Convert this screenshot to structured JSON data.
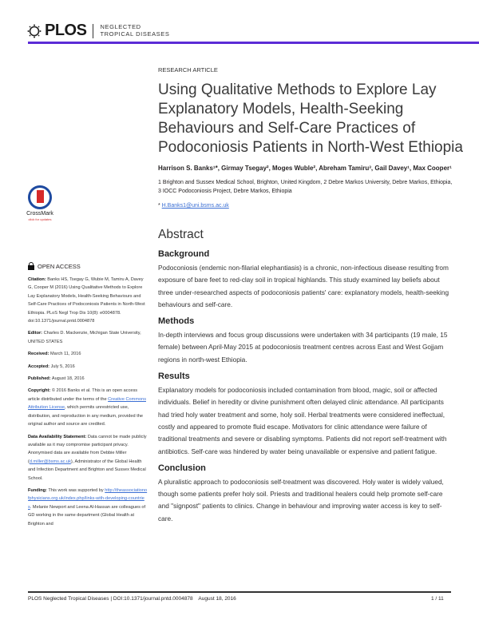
{
  "header": {
    "brand": "PLOS",
    "journal_line1": "NEGLECTED",
    "journal_line2": "TROPICAL DISEASES",
    "accent": "#5b2bd6"
  },
  "article_type": "RESEARCH ARTICLE",
  "title": "Using Qualitative Methods to Explore Lay Explanatory Models, Health-Seeking Behaviours and Self-Care Practices of Podoconiosis Patients in North-West Ethiopia",
  "authors": "Harrison S. Banks¹*, Girmay Tsegay², Moges Wuble², Abreham Tamiru³, Gail Davey¹, Max Cooper¹",
  "affiliations": "1  Brighton and Sussex Medical School, Brighton, United Kingdom, 2  Debre Markos University, Debre Markos, Ethiopia, 3  IOCC Podoconiosis Project, Debre Markos, Ethiopia",
  "email_prefix": "* ",
  "email": "H.Banks1@uni.bsms.ac.uk",
  "crossmark": {
    "name": "CrossMark",
    "sub": "click for updates"
  },
  "open_access": "OPEN ACCESS",
  "sidebar": {
    "citation_label": "Citation:",
    "citation": " Banks HS, Tsegay G, Wubie M, Tamiru A, Davey G, Cooper M (2016) Using Qualitative Methods to Explore Lay Explanatory Models, Health-Seeking Behaviours and Self-Care Practices of Podoconiosis Patients in North-West Ethiopia. PLoS Negl Trop Dis 10(8): e0004878. doi:10.1371/journal.pntd.0004878",
    "editor_label": "Editor:",
    "editor": " Charles D. Mackenzie, Michigan State University, UNITED STATES",
    "received_label": "Received:",
    "received": " March 11, 2016",
    "accepted_label": "Accepted:",
    "accepted": " July 5, 2016",
    "published_label": "Published:",
    "published": " August 18, 2016",
    "copyright_label": "Copyright:",
    "copyright_1": " © 2016 Banks et al. This is an open access article distributed under the terms of the ",
    "copyright_link": "Creative Commons Attribution License",
    "copyright_2": ", which permits unrestricted use, distribution, and reproduction in any medium, provided the original author and source are credited.",
    "data_label": "Data Availability Statement:",
    "data_1": " Data cannot be made publicly available as it may compromise participant privacy. Anonymised data are available from Debbie Miller (",
    "data_link": "d.miller@bsms.ac.uk",
    "data_2": "), Administrator of the Global Health and Infection Department and Brighton and Sussex Medical School.",
    "funding_label": "Funding:",
    "funding_1": " This work was supported by ",
    "funding_link": "http://theassociationofphysicians.org.uk/index.php/links-with-developing-countries",
    "funding_2": ". Melanie Newport and Leena Al-Hassan are colleagues of GD working in the same department (Global Health at Brighton and"
  },
  "abstract": {
    "heading": "Abstract",
    "sections": [
      {
        "heading": "Background",
        "text": "Podoconiosis (endemic non-filarial elephantiasis) is a chronic, non-infectious disease resulting from exposure of bare feet to red-clay soil in tropical highlands. This study examined lay beliefs about three under-researched aspects of podoconiosis patients' care: explanatory models, health-seeking behaviours and self-care."
      },
      {
        "heading": "Methods",
        "text": "In-depth interviews and focus group discussions were undertaken with 34 participants (19 male, 15 female) between April-May 2015 at podoconiosis treatment centres across East and West Gojjam regions in north-west Ethiopia."
      },
      {
        "heading": "Results",
        "text": "Explanatory models for podoconiosis included contamination from blood, magic, soil or affected individuals. Belief in heredity or divine punishment often delayed clinic attendance. All participants had tried holy water treatment and some, holy soil. Herbal treatments were considered ineffectual, costly and appeared to promote fluid escape. Motivators for clinic attendance were failure of traditional treatments and severe or disabling symptoms. Patients did not report self-treatment with antibiotics. Self-care was hindered by water being unavailable or expensive and patient fatigue."
      },
      {
        "heading": "Conclusion",
        "text": "A pluralistic approach to podoconiosis self-treatment was discovered. Holy water is widely valued, though some patients prefer holy soil. Priests and traditional healers could help promote self-care and \"signpost\" patients to clinics. Change in behaviour and improving water access is key to self-care."
      }
    ]
  },
  "footer": {
    "text": "PLOS Neglected Tropical Diseases | DOI:10.1371/journal.pntd.0004878    August 18, 2016",
    "page": "1 / 11"
  }
}
